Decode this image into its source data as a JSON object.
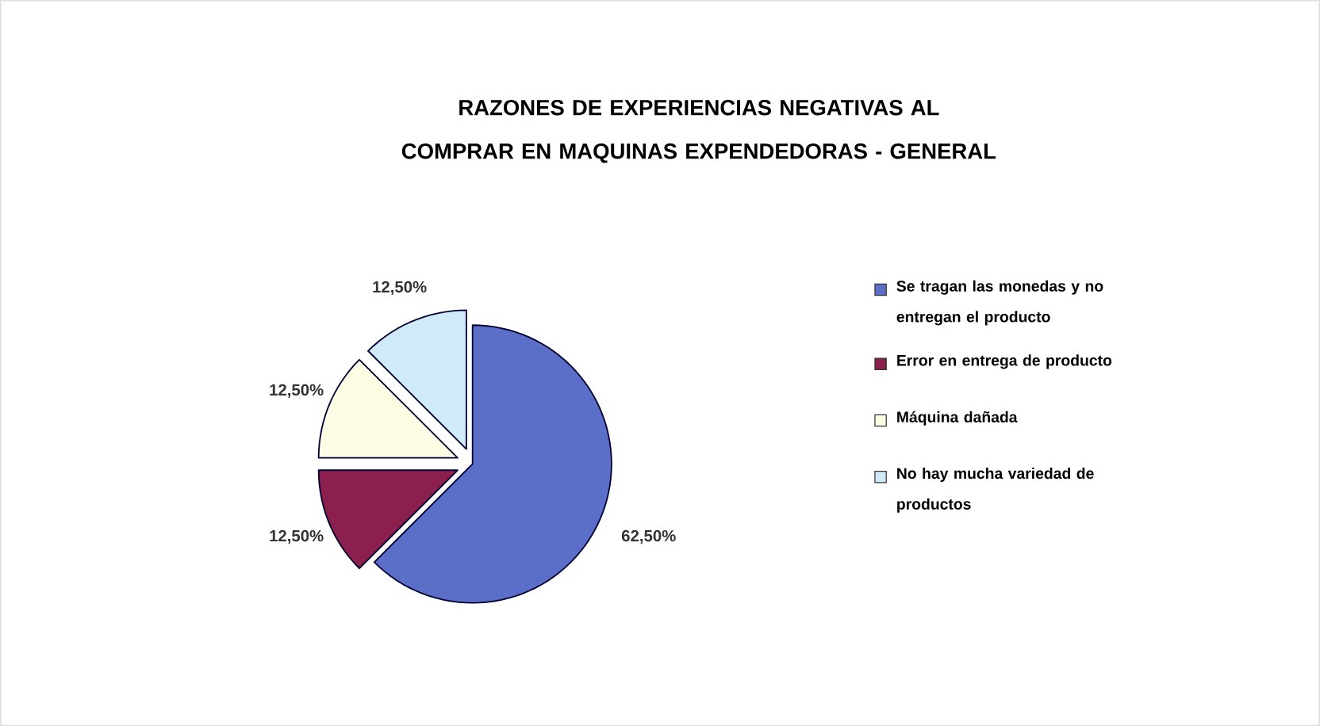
{
  "chart_data": {
    "type": "pie",
    "title": "RAZONES DE EXPERIENCIAS NEGATIVAS AL COMPRAR EN MAQUINAS EXPENDEDORAS - GENERAL",
    "categories": [
      "Se tragan las monedas y no entregan el producto",
      "Error en entrega de producto",
      "Máquina dañada",
      "No hay mucha variedad de productos"
    ],
    "values": [
      62.5,
      12.5,
      12.5,
      12.5
    ],
    "colors": [
      "#5b6fc8",
      "#8b1f4e",
      "#fdfde6",
      "#cfeaf8"
    ],
    "value_labels": [
      "62,50%",
      "12,50%",
      "12,50%",
      "12,50%"
    ],
    "legend": "right"
  }
}
